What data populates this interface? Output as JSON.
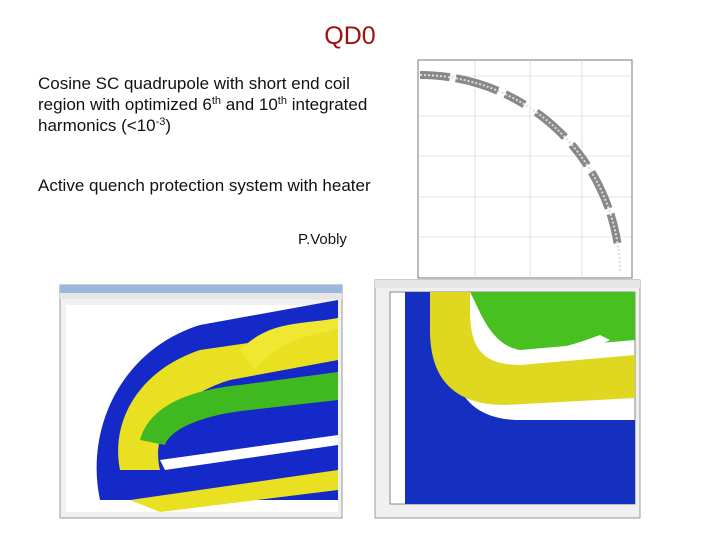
{
  "title": "QD0",
  "bullets": [
    {
      "segments": [
        "Cosine SC quadrupole with short end coil region with optimized 6",
        "th",
        " and 10",
        "th",
        " integrated harmonics (<10",
        "-3",
        ")"
      ]
    },
    {
      "segments": [
        "Active quench protection system with heater"
      ]
    }
  ],
  "author": "P.Vobly"
}
